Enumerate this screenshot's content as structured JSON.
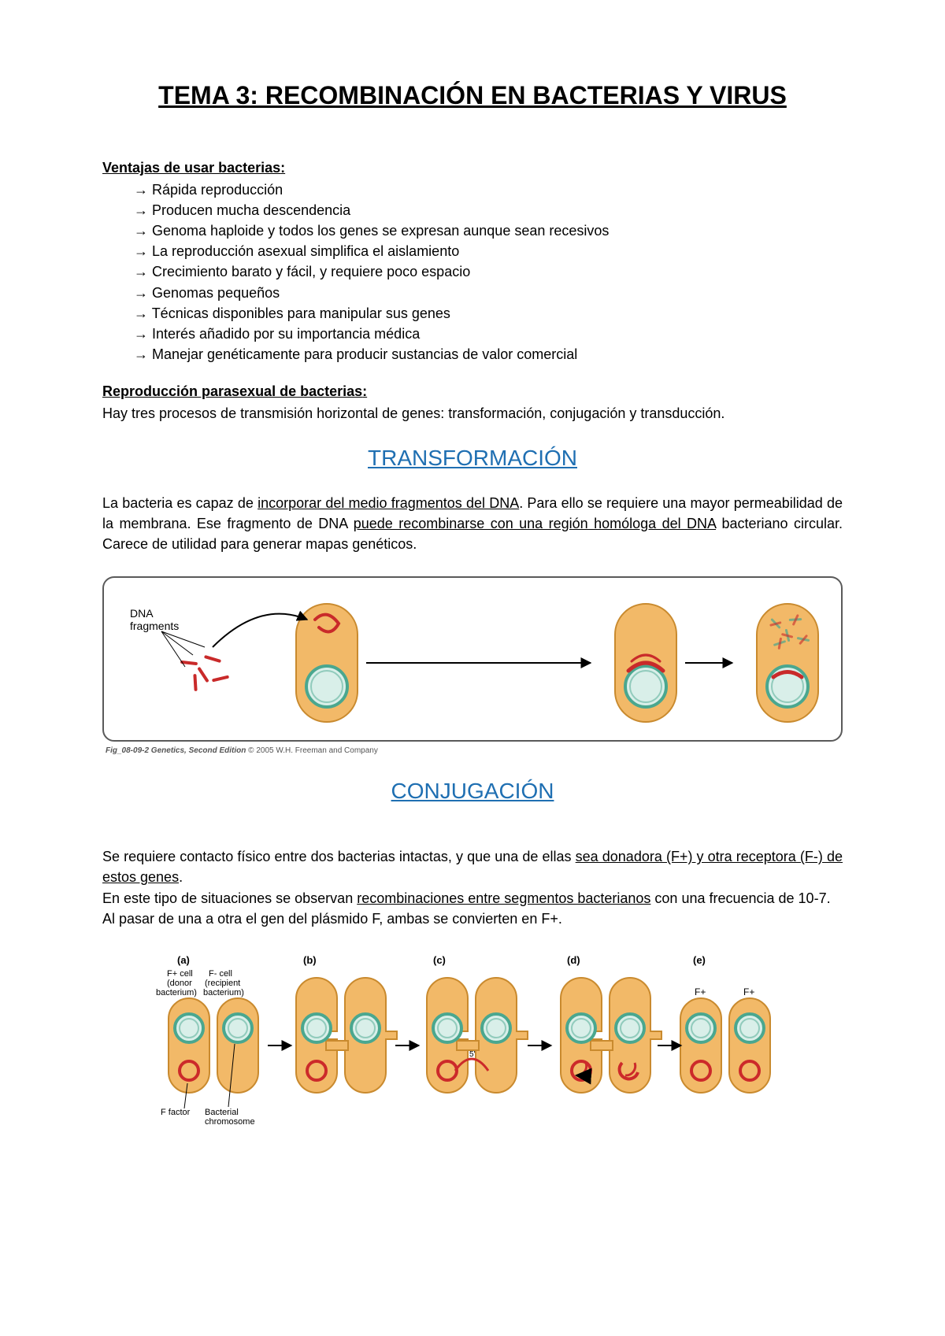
{
  "title": "TEMA 3: RECOMBINACIÓN EN BACTERIAS Y VIRUS",
  "advantages": {
    "heading": "Ventajas de usar bacterias",
    "items": [
      "Rápida reproducción",
      "Producen mucha descendencia",
      "Genoma haploide y todos los genes se expresan aunque sean recesivos",
      "La reproducción asexual simplifica el aislamiento",
      "Crecimiento barato y fácil, y requiere poco espacio",
      "Genomas pequeños",
      "Técnicas disponibles para manipular sus genes",
      "Interés añadido por su importancia médica",
      "Manejar genéticamente para producir sustancias de valor comercial"
    ]
  },
  "parasexual": {
    "heading": "Reproducción parasexual de bacterias",
    "text": "Hay tres procesos de transmisión horizontal de genes: transformación, conjugación y transducción."
  },
  "transformation": {
    "title": "TRANSFORMACIÓN",
    "pre1": "La bacteria es capaz de ",
    "u1": "incorporar del medio fragmentos del DNA",
    "mid": ". Para ello se requiere una mayor permeabilidad de la membrana. Ese fragmento de DNA ",
    "u2": "puede recombinarse con una región homóloga del DNA",
    "post": " bacteriano circular. Carece de utilidad para generar mapas genéticos.",
    "figure": {
      "label_dna": "DNA\nfragments",
      "caption_bold": "Fig_08-09-2  Genetics, Second Edition",
      "caption_rest": " © 2005 W.H. Freeman and Company",
      "colors": {
        "border": "#5a5a5a",
        "cell_fill": "#f2b968",
        "cell_stroke": "#c98a2e",
        "chrom_fill": "#d9efe9",
        "chrom_stroke": "#4aa78f",
        "dna_frag": "#c92a2a",
        "arrow": "#000000"
      }
    }
  },
  "conjugation": {
    "title": "CONJUGACIÓN",
    "pre1": "Se requiere contacto físico entre dos bacterias intactas, y que una de ellas ",
    "u1": "sea donadora (F+) y otra receptora (F-) de estos genes",
    "mid": ".\nEn este tipo de situaciones se observan ",
    "u2": "recombinaciones entre segmentos bacterianos",
    "post": " con una frecuencia de 10-7.\nAl pasar de una a otra el gen del plásmido F, ambas se convierten en F+.",
    "figure": {
      "panels": [
        "(a)",
        "(b)",
        "(c)",
        "(d)",
        "(e)"
      ],
      "a_labels": {
        "fplus": "F+ cell",
        "fminus": "F- cell",
        "donor": "(donor",
        "recipient": "(recipient",
        "bact1": "bacterium)",
        "bact2": "bacterium)",
        "ffactor": "F factor",
        "chrom": "Bacterial\nchromosome"
      },
      "pair_labels": {
        "fp": "F+",
        "fm": "F-"
      },
      "five_prime": "5'",
      "colors": {
        "cell_fill": "#f2b968",
        "cell_stroke": "#c98a2e",
        "chrom_fill": "#d9efe9",
        "chrom_stroke": "#4aa78f",
        "plasmid": "#cc2a2a",
        "arrow": "#000000",
        "label": "#000000"
      }
    }
  }
}
